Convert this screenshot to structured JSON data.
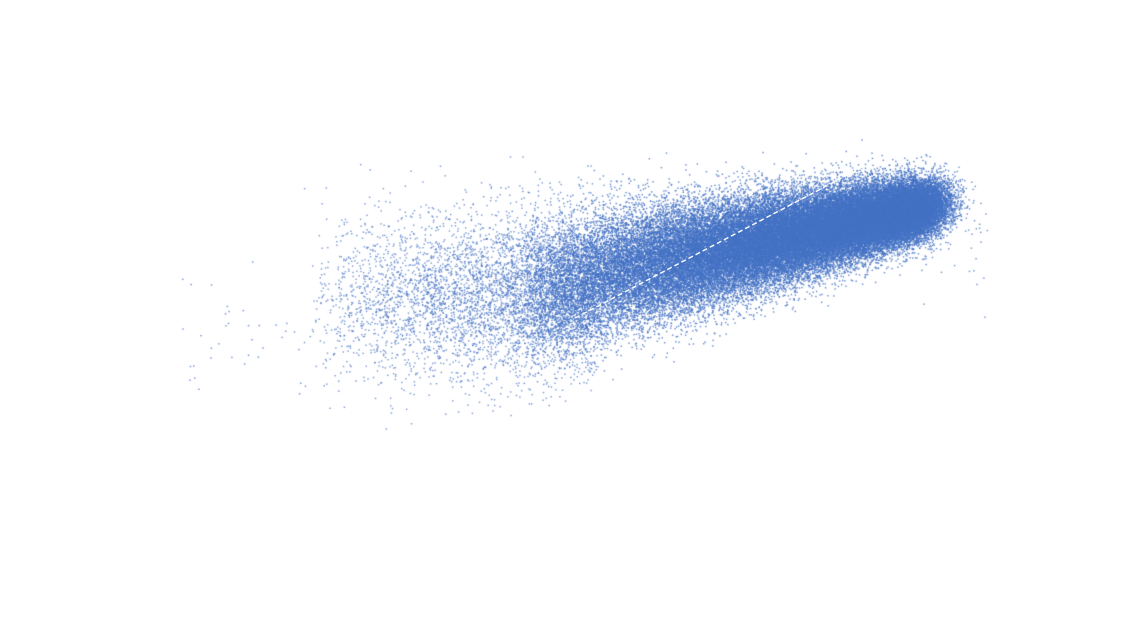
{
  "chart_data": {
    "type": "scatter",
    "title": "",
    "xlabel": "",
    "ylabel": "",
    "grid": false,
    "axes_visible": false,
    "legend": "none",
    "xlim": [
      0,
      10
    ],
    "ylim": [
      0,
      10
    ],
    "point_color": "#4472c4",
    "point_count_estimate": 60000,
    "distribution": {
      "shape": "elongated-cloud",
      "dense_core": {
        "x_range": [
          5.0,
          8.4
        ],
        "y_range": [
          5.0,
          7.0
        ]
      },
      "sparse_tail": {
        "x_range": [
          1.6,
          5.0
        ],
        "y_range": [
          3.6,
          7.0
        ]
      }
    },
    "annotations": [
      {
        "type": "dashed-line",
        "color": "#ffffff",
        "from": {
          "x": 5.05,
          "y": 5.0
        },
        "to": {
          "x": 7.6,
          "y": 7.4
        }
      }
    ]
  }
}
